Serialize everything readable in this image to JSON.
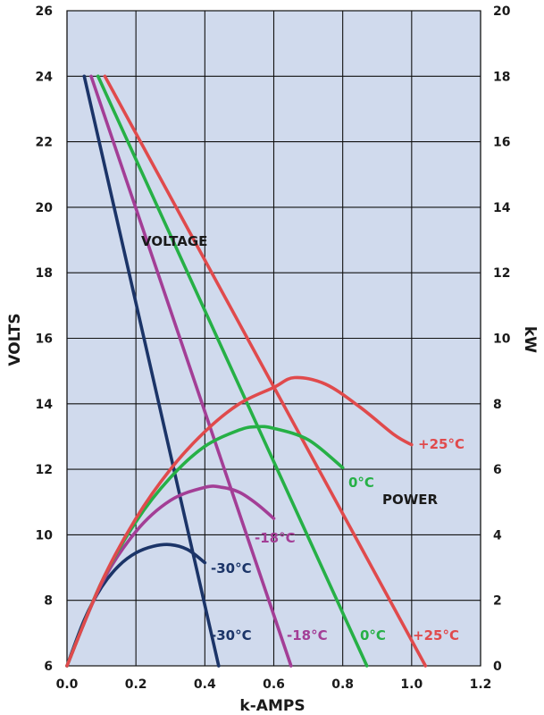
{
  "chart_data": {
    "type": "line",
    "title": "",
    "xlabel": "k-AMPS",
    "ylabel_left": "VOLTS",
    "ylabel_right": "kW",
    "xlim": [
      0,
      1.2
    ],
    "ylim_left": [
      6,
      26
    ],
    "ylim_right": [
      0,
      20
    ],
    "x_ticks": [
      "0.0",
      "0.2",
      "0.4",
      "0.6",
      "0.8",
      "1.0",
      "1.2"
    ],
    "y_left_ticks": [
      "6",
      "8",
      "10",
      "12",
      "14",
      "16",
      "18",
      "20",
      "22",
      "24",
      "26"
    ],
    "y_right_ticks": [
      "0",
      "2",
      "4",
      "6",
      "8",
      "10",
      "12",
      "14",
      "16",
      "18",
      "20"
    ],
    "grid": true,
    "background_color": "#d0daed",
    "annotations": {
      "voltage": "VOLTAGE",
      "power": "POWER"
    },
    "series": [
      {
        "name": "-30°C",
        "group": "voltage",
        "axis": "left",
        "color": "#1b3468",
        "points": [
          [
            0.05,
            24.0
          ],
          [
            0.44,
            6.0
          ]
        ]
      },
      {
        "name": "-18°C",
        "group": "voltage",
        "axis": "left",
        "color": "#a33e96",
        "points": [
          [
            0.07,
            24.0
          ],
          [
            0.65,
            6.0
          ]
        ]
      },
      {
        "name": "0°C",
        "group": "voltage",
        "axis": "left",
        "color": "#26b046",
        "points": [
          [
            0.09,
            24.0
          ],
          [
            0.87,
            6.0
          ]
        ]
      },
      {
        "name": "+25°C",
        "group": "voltage",
        "axis": "left",
        "color": "#e04a4c",
        "points": [
          [
            0.11,
            24.0
          ],
          [
            1.04,
            6.0
          ]
        ]
      },
      {
        "name": "-30°C",
        "group": "power",
        "axis": "right",
        "color": "#1b3468",
        "points": [
          [
            0.0,
            0.0
          ],
          [
            0.05,
            1.4
          ],
          [
            0.1,
            2.4
          ],
          [
            0.15,
            3.05
          ],
          [
            0.2,
            3.45
          ],
          [
            0.25,
            3.65
          ],
          [
            0.3,
            3.7
          ],
          [
            0.35,
            3.55
          ],
          [
            0.4,
            3.15
          ]
        ]
      },
      {
        "name": "-18°C",
        "group": "power",
        "axis": "right",
        "color": "#a33e96",
        "points": [
          [
            0.0,
            0.0
          ],
          [
            0.1,
            2.5
          ],
          [
            0.2,
            4.1
          ],
          [
            0.3,
            5.05
          ],
          [
            0.4,
            5.45
          ],
          [
            0.45,
            5.45
          ],
          [
            0.5,
            5.3
          ],
          [
            0.55,
            4.95
          ],
          [
            0.6,
            4.5
          ]
        ]
      },
      {
        "name": "0°C",
        "group": "power",
        "axis": "right",
        "color": "#26b046",
        "points": [
          [
            0.0,
            0.0
          ],
          [
            0.1,
            2.55
          ],
          [
            0.2,
            4.4
          ],
          [
            0.3,
            5.75
          ],
          [
            0.4,
            6.7
          ],
          [
            0.5,
            7.2
          ],
          [
            0.55,
            7.3
          ],
          [
            0.6,
            7.25
          ],
          [
            0.7,
            6.9
          ],
          [
            0.8,
            6.05
          ]
        ]
      },
      {
        "name": "+25°C",
        "group": "power",
        "axis": "right",
        "color": "#e04a4c",
        "points": [
          [
            0.0,
            0.0
          ],
          [
            0.1,
            2.55
          ],
          [
            0.2,
            4.5
          ],
          [
            0.3,
            6.0
          ],
          [
            0.4,
            7.15
          ],
          [
            0.5,
            8.0
          ],
          [
            0.6,
            8.5
          ],
          [
            0.66,
            8.8
          ],
          [
            0.75,
            8.6
          ],
          [
            0.85,
            7.9
          ],
          [
            0.95,
            7.05
          ],
          [
            1.0,
            6.75
          ]
        ]
      }
    ],
    "curve_labels": [
      {
        "text": "-30°C",
        "color": "#1b3468"
      },
      {
        "text": "-18°C",
        "color": "#a33e96"
      },
      {
        "text": "0°C",
        "color": "#26b046"
      },
      {
        "text": "+25°C",
        "color": "#e04a4c"
      },
      {
        "text": "-30°C",
        "color": "#1b3468"
      },
      {
        "text": "-18°C",
        "color": "#a33e96"
      },
      {
        "text": "0°C",
        "color": "#26b046"
      },
      {
        "text": "+25°C",
        "color": "#e04a4c"
      }
    ]
  }
}
